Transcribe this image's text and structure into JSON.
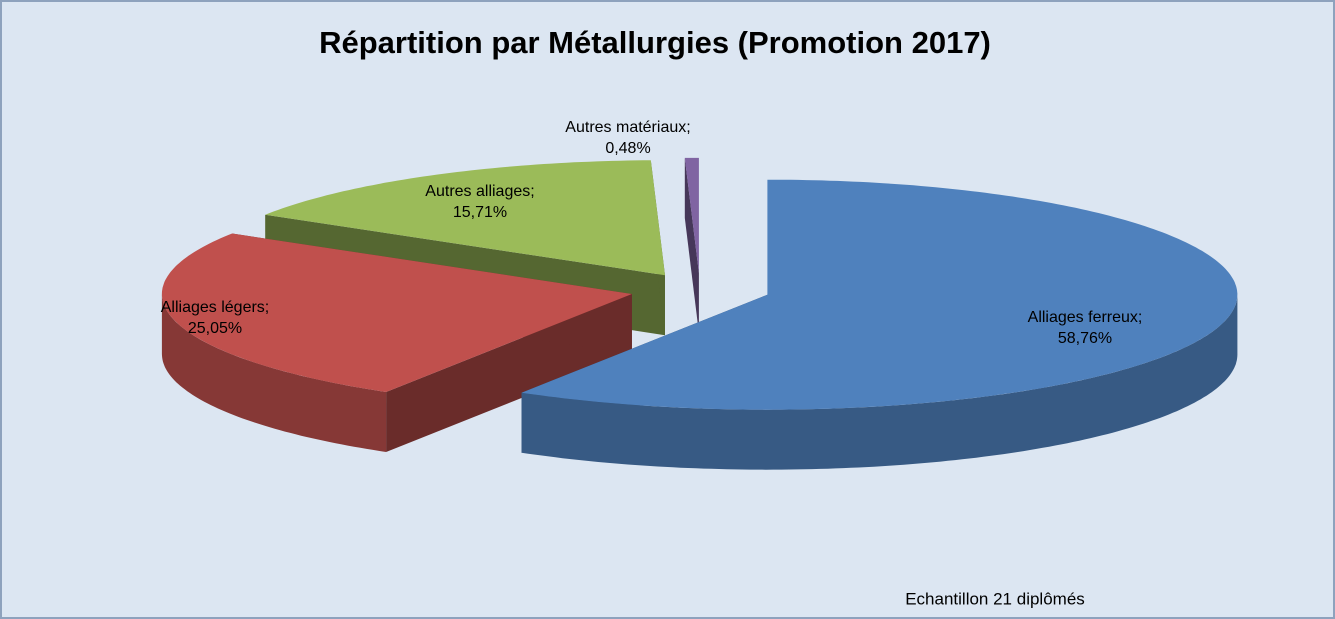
{
  "chart_data": {
    "type": "pie",
    "title": "Répartition par Métallurgies (Promotion 2017)",
    "categories": [
      "Alliages ferreux;",
      "Alliages légers;",
      "Autres alliages;",
      "Autres matériaux;"
    ],
    "values": [
      58.76,
      25.05,
      15.71,
      0.48
    ],
    "value_labels": [
      "58,76%",
      "25,05%",
      "15,71%",
      "0,48%"
    ],
    "colors": [
      "#4f81bd",
      "#c0504d",
      "#9bbb59",
      "#8064a2"
    ],
    "annotation": "Echantillon 21 diplômés"
  }
}
